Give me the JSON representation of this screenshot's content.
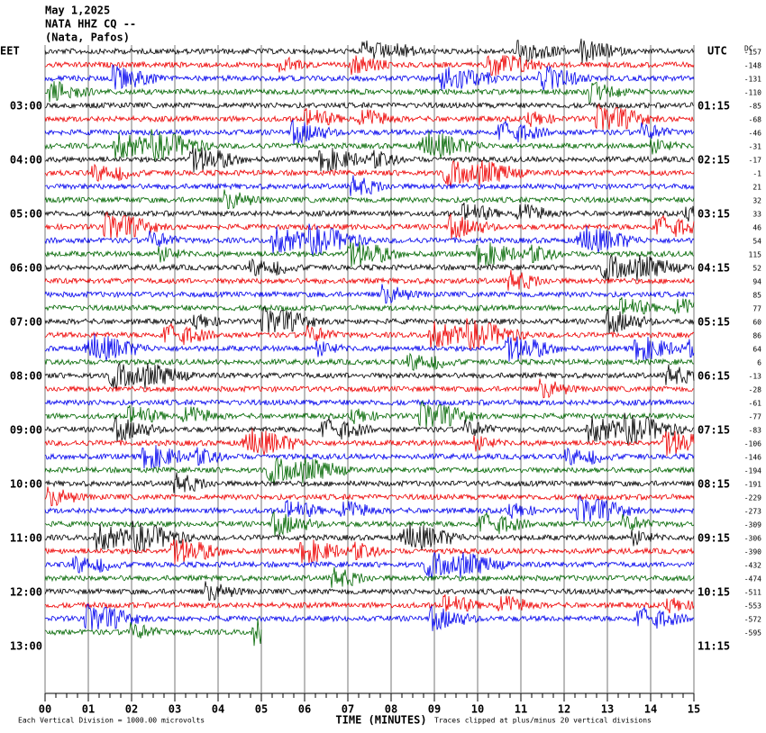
{
  "header": {
    "lines": [
      "May 1,2025",
      "NATA HHZ CQ --",
      "(Nata, Pafos)"
    ]
  },
  "left_corner": "EET",
  "right_corner": "UTC",
  "dc_label": "DC",
  "left_labels": [
    "03:00",
    "04:00",
    "05:00",
    "06:00",
    "07:00",
    "08:00",
    "09:00",
    "10:00",
    "11:00",
    "12:00",
    "13:00"
  ],
  "right_labels": [
    "01:15",
    "02:15",
    "03:15",
    "04:15",
    "05:15",
    "06:15",
    "07:15",
    "08:15",
    "09:15",
    "10:15",
    "11:15"
  ],
  "dc_offsets": [
    -157,
    -148,
    -131,
    -110,
    -85,
    -68,
    -46,
    -31,
    -17,
    -1,
    21,
    32,
    33,
    46,
    54,
    115,
    52,
    94,
    85,
    77,
    60,
    86,
    64,
    6,
    -13,
    -28,
    -61,
    -77,
    -83,
    -106,
    -146,
    -194,
    -191,
    -229,
    -273,
    -309,
    -306,
    -390,
    -432,
    -474,
    -511,
    -553,
    -572,
    -595
  ],
  "x_ticks": [
    "00",
    "01",
    "02",
    "03",
    "04",
    "05",
    "06",
    "07",
    "08",
    "09",
    "10",
    "11",
    "12",
    "13",
    "14",
    "15"
  ],
  "x_axis_label": "TIME (MINUTES)",
  "footer_left": "Each Vertical Division = 1000.00 microvolts",
  "footer_right": "Traces clipped at plus/minus 20 vertical divisions"
}
